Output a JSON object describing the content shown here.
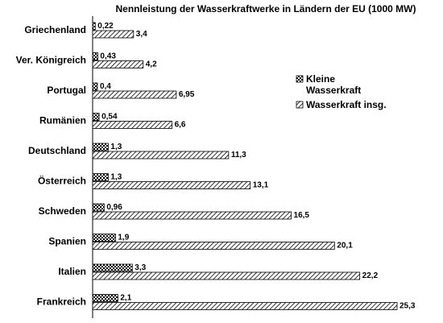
{
  "chart_data": {
    "type": "hbar",
    "title": "Nennleistung der Wasserkraftwerke in Ländern der EU (1000 MW)",
    "categories": [
      "Griechenland",
      "Ver. Königreich",
      "Portugal",
      "Rumänien",
      "Deutschland",
      "Österreich",
      "Schweden",
      "Spanien",
      "Italien",
      "Frankreich"
    ],
    "series": [
      {
        "name": "Kleine Wasserkraft",
        "pattern": "checker",
        "color": "#000000",
        "values": [
          0.22,
          0.43,
          0.4,
          0.54,
          1.3,
          1.3,
          0.96,
          1.9,
          3.3,
          2.1
        ],
        "value_labels": [
          "0,22",
          "0,43",
          "0,4",
          "0,54",
          "1,3",
          "1,3",
          "0,96",
          "1,9",
          "3,3",
          "2,1"
        ]
      },
      {
        "name": "Wasserkraft insg.",
        "pattern": "hatch",
        "color": "#000000",
        "values": [
          3.4,
          4.2,
          6.95,
          6.6,
          11.3,
          13.1,
          16.5,
          20.1,
          22.2,
          25.3
        ],
        "value_labels": [
          "3,4",
          "4,2",
          "6,95",
          "6,6",
          "11,3",
          "13,1",
          "16,5",
          "20,1",
          "22,2",
          "25,3"
        ]
      }
    ]
  }
}
